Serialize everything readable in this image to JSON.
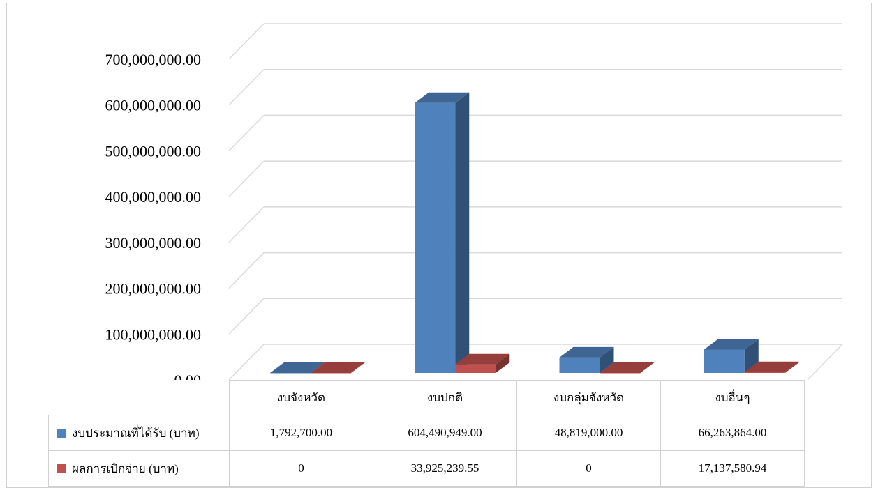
{
  "chart_data": {
    "type": "bar",
    "categories": [
      "งบจังหวัด",
      "งบปกติ",
      "งบกลุ่มจังหวัด",
      "งบอื่นๆ"
    ],
    "series": [
      {
        "name": "งบประมาณที่ได้รับ (บาท)",
        "color": "#4f81bd",
        "values": [
          1792700,
          604490949,
          48819000,
          66263864
        ],
        "labels": [
          "1,792,700.00",
          "604,490,949.00",
          "48,819,000.00",
          "66,263,864.00"
        ]
      },
      {
        "name": "ผลการเบิกจ่าย (บาท)",
        "color": "#c0504d",
        "values": [
          0,
          33925239.55,
          0,
          17137580.94
        ],
        "labels": [
          "0",
          "33,925,239.55",
          "0",
          "17,137,580.94"
        ]
      }
    ],
    "yticks": [
      "0.00",
      "100,000,000.00",
      "200,000,000.00",
      "300,000,000.00",
      "400,000,000.00",
      "500,000,000.00",
      "600,000,000.00",
      "700,000,000.00"
    ],
    "ylim": [
      0,
      700000000
    ],
    "grid": true,
    "legend": "data-table"
  }
}
